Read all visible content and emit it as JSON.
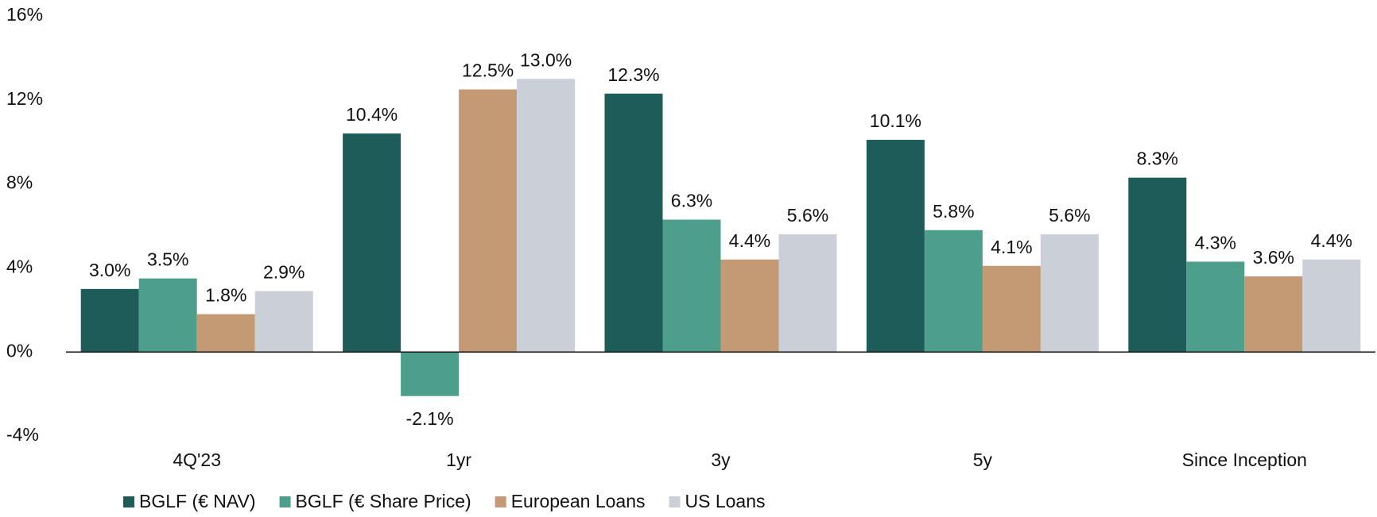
{
  "chart_data": {
    "type": "bar",
    "categories": [
      "4Q'23",
      "1yr",
      "3y",
      "5y",
      "Since Inception"
    ],
    "series": [
      {
        "name": "BGLF (€ NAV)",
        "color": "#1e5c5a",
        "values": [
          3.0,
          10.4,
          12.3,
          10.1,
          8.3
        ],
        "value_labels": [
          "3.0%",
          "10.4%",
          "12.3%",
          "10.1%",
          "8.3%"
        ]
      },
      {
        "name": "BGLF (€ Share Price)",
        "color": "#4d9f8b",
        "values": [
          3.5,
          -2.1,
          6.3,
          5.8,
          4.3
        ],
        "value_labels": [
          "3.5%",
          "-2.1%",
          "6.3%",
          "5.8%",
          "4.3%"
        ]
      },
      {
        "name": "European Loans",
        "color": "#c49a74",
        "values": [
          1.8,
          12.5,
          4.4,
          4.1,
          3.6
        ],
        "value_labels": [
          "1.8%",
          "12.5%",
          "4.4%",
          "4.1%",
          "3.6%"
        ]
      },
      {
        "name": "US Loans",
        "color": "#cbcfd8",
        "values": [
          2.9,
          13.0,
          5.6,
          5.6,
          4.4
        ],
        "value_labels": [
          "2.9%",
          "13.0%",
          "5.6%",
          "5.6%",
          "4.4%"
        ]
      }
    ],
    "ylim": [
      -4,
      16
    ],
    "yticks": [
      {
        "value": -4,
        "label": "-4%"
      },
      {
        "value": 0,
        "label": "0%"
      },
      {
        "value": 4,
        "label": "4%"
      },
      {
        "value": 8,
        "label": "8%"
      },
      {
        "value": 12,
        "label": "12%"
      },
      {
        "value": 16,
        "label": "16%"
      }
    ],
    "grid": false,
    "legend": "bottom-left"
  }
}
